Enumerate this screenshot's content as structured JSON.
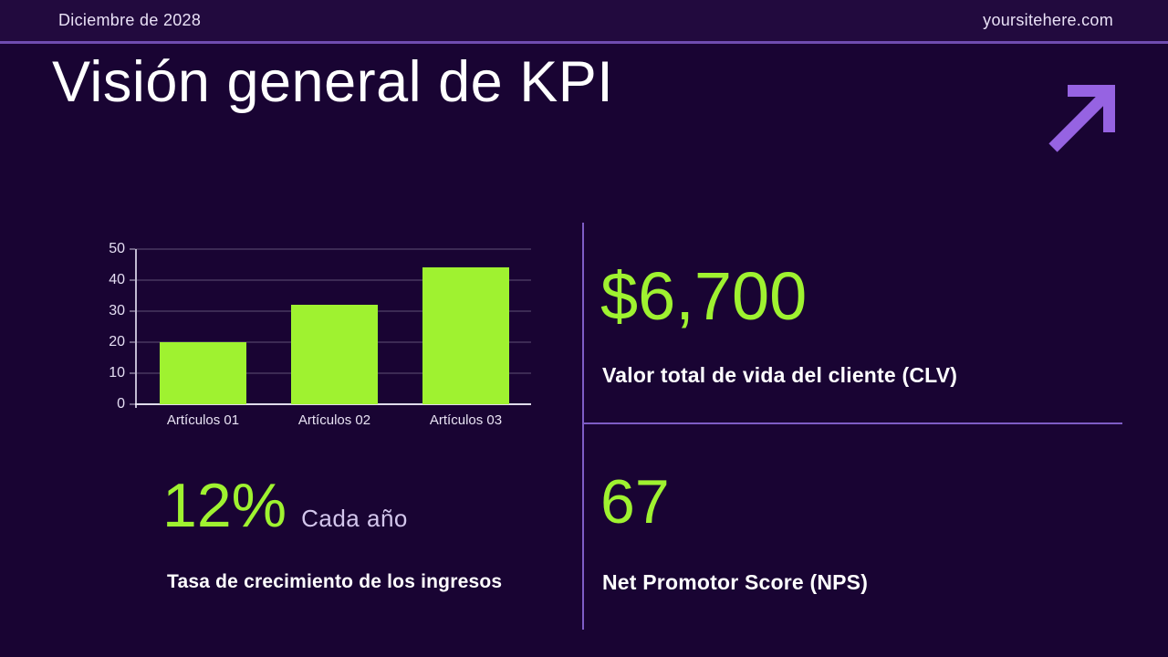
{
  "topbar": {
    "date": "Diciembre de 2028",
    "website": "yoursitehere.com"
  },
  "header": {
    "title": "Visión general de KPI"
  },
  "chart_data": {
    "type": "bar",
    "title": "",
    "categories": [
      "Artículos 01",
      "Artículos 02",
      "Artículos 03"
    ],
    "values": [
      20,
      32,
      44
    ],
    "xlabel": "",
    "ylabel": "",
    "ylim": [
      0,
      50
    ],
    "yticks": [
      0,
      10,
      20,
      30,
      40,
      50
    ],
    "grid": true,
    "legend_position": "none",
    "bar_color": "#9ff230"
  },
  "kpis": {
    "revenue_growth": {
      "value": "12%",
      "period": "Cada año",
      "label": "Tasa de crecimiento de los ingresos"
    },
    "clv": {
      "value": "$6,700",
      "label": "Valor total de vida del cliente (CLV)"
    },
    "nps": {
      "value": "67",
      "label": "Net Promotor Score (NPS)"
    }
  },
  "icons": {
    "trend_arrow": "arrow-up-right"
  },
  "colors": {
    "background": "#190433",
    "topbar_background": "#220a3e",
    "accent_green": "#9ff230",
    "accent_purple": "#9663e2",
    "divider_purple": "#7e5dc6",
    "text_primary": "#ffffff",
    "text_muted": "#d3c6ec"
  }
}
